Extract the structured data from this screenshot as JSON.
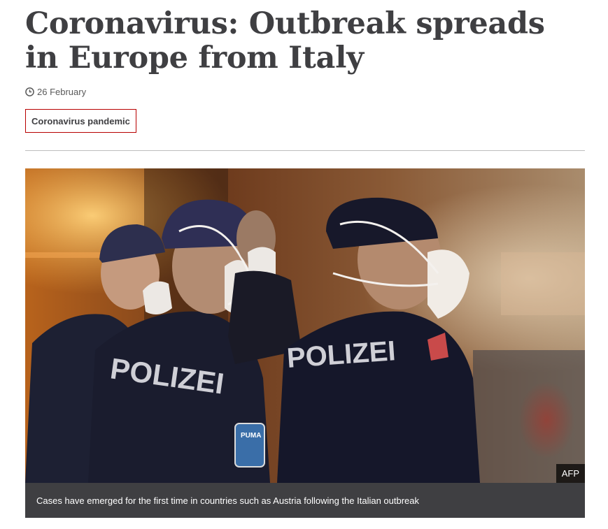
{
  "article": {
    "headline": "Coronavirus: Outbreak spreads in Europe from Italy",
    "date": "26 February",
    "topic_tag": "Coronavirus pandemic"
  },
  "media": {
    "photo_description_icon": "photo",
    "jacket_text_left": "POLIZEI",
    "jacket_text_right": "POLIZEI",
    "badge_text": "PUMA",
    "credit": "AFP",
    "caption": "Cases have emerged for the first time in countries such as Austria following the Italian outbreak"
  },
  "colors": {
    "tag_border": "#b80000",
    "caption_bg": "#3f3f42",
    "text": "#3f3f42"
  }
}
